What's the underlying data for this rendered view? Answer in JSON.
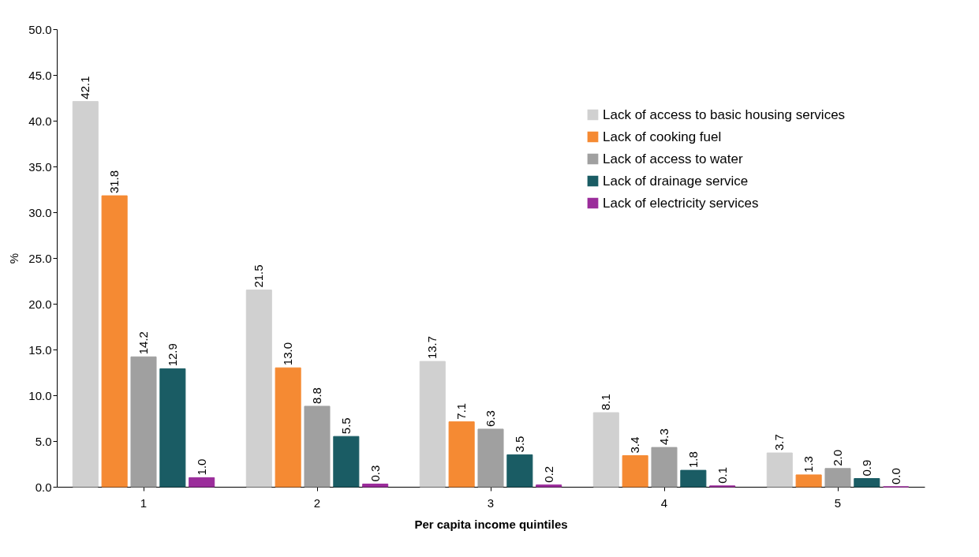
{
  "chart_data": {
    "type": "bar",
    "xlabel": "Per capita income quintiles",
    "ylabel": "%",
    "categories": [
      "1",
      "2",
      "3",
      "4",
      "5"
    ],
    "series": [
      {
        "name": "Lack of access to basic housing services",
        "color": "#d0d0d0",
        "values": [
          42.1,
          21.5,
          13.7,
          8.1,
          3.7
        ],
        "value_labels": [
          "42.1",
          "21.5",
          "13.7",
          "8.1",
          "3.7"
        ]
      },
      {
        "name": "Lack of cooking fuel",
        "color": "#f58a33",
        "values": [
          31.8,
          13.0,
          7.1,
          3.4,
          1.3
        ],
        "value_labels": [
          "31.8",
          "13.0",
          "7.1",
          "3.4",
          "1.3"
        ]
      },
      {
        "name": "Lack of access to water",
        "color": "#a0a0a0",
        "values": [
          14.2,
          8.8,
          6.3,
          4.3,
          2.0
        ],
        "value_labels": [
          "14.2",
          "8.8",
          "6.3",
          "4.3",
          "2.0"
        ]
      },
      {
        "name": "Lack of drainage service",
        "color": "#1a5c64",
        "values": [
          12.9,
          5.5,
          3.5,
          1.8,
          0.9
        ],
        "value_labels": [
          "12.9",
          "5.5",
          "3.5",
          "1.8",
          "0.9"
        ]
      },
      {
        "name": "Lack of electricity services",
        "color": "#9b2d9b",
        "values": [
          1.0,
          0.3,
          0.2,
          0.1,
          0.0
        ],
        "value_labels": [
          "1.0",
          "0.3",
          "0.2",
          "0.1",
          "0.0"
        ]
      }
    ],
    "ylim": [
      0,
      50
    ],
    "yticks": [
      {
        "value": 0,
        "label": "0.0"
      },
      {
        "value": 5,
        "label": "5.0"
      },
      {
        "value": 10,
        "label": "10.0"
      },
      {
        "value": 15,
        "label": "15.0"
      },
      {
        "value": 20,
        "label": "20.0"
      },
      {
        "value": 25,
        "label": "25.0"
      },
      {
        "value": 30,
        "label": "30.0"
      },
      {
        "value": 35,
        "label": "35.0"
      },
      {
        "value": 40,
        "label": "40.0"
      },
      {
        "value": 45,
        "label": "45.0"
      },
      {
        "value": 50,
        "label": "50.0"
      }
    ],
    "grid": false,
    "legend": "top right"
  }
}
